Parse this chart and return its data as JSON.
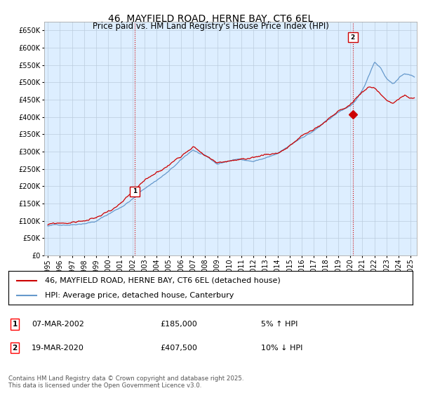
{
  "title": "46, MAYFIELD ROAD, HERNE BAY, CT6 6EL",
  "subtitle": "Price paid vs. HM Land Registry's House Price Index (HPI)",
  "ylim": [
    0,
    675000
  ],
  "yticks": [
    0,
    50000,
    100000,
    150000,
    200000,
    250000,
    300000,
    350000,
    400000,
    450000,
    500000,
    550000,
    600000,
    650000
  ],
  "xlim_start": 1994.7,
  "xlim_end": 2025.5,
  "xticks": [
    1995,
    1996,
    1997,
    1998,
    1999,
    2000,
    2001,
    2002,
    2003,
    2004,
    2005,
    2006,
    2007,
    2008,
    2009,
    2010,
    2011,
    2012,
    2013,
    2014,
    2015,
    2016,
    2017,
    2018,
    2019,
    2020,
    2021,
    2022,
    2023,
    2024,
    2025
  ],
  "sale1_x": 2002.18,
  "sale1_y": 185000,
  "sale1_label": "1",
  "sale2_x": 2020.21,
  "sale2_y": 407500,
  "sale2_label": "2",
  "line_color_price": "#cc0000",
  "line_color_hpi": "#6699cc",
  "vline_color": "#cc0000",
  "grid_color": "#bbccdd",
  "plot_bg_color": "#ddeeff",
  "fig_bg_color": "#ffffff",
  "legend1_label": "46, MAYFIELD ROAD, HERNE BAY, CT6 6EL (detached house)",
  "legend2_label": "HPI: Average price, detached house, Canterbury",
  "annotation1_date": "07-MAR-2002",
  "annotation1_price": "£185,000",
  "annotation1_hpi": "5% ↑ HPI",
  "annotation2_date": "19-MAR-2020",
  "annotation2_price": "£407,500",
  "annotation2_hpi": "10% ↓ HPI",
  "footnote": "Contains HM Land Registry data © Crown copyright and database right 2025.\nThis data is licensed under the Open Government Licence v3.0.",
  "title_fontsize": 10,
  "tick_fontsize": 7,
  "legend_fontsize": 8,
  "annot_fontsize": 8
}
